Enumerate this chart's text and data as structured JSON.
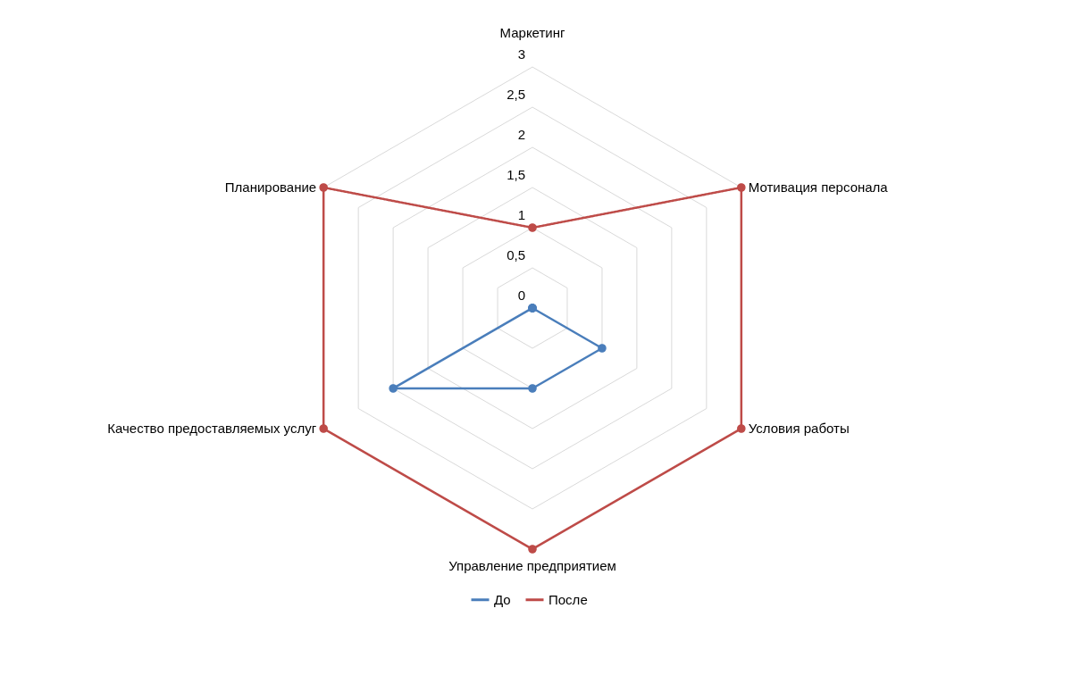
{
  "chart_data": {
    "type": "radar",
    "categories": [
      "Маркетинг",
      "Мотивация персонала",
      "Условия работы",
      "Управление предприятием",
      "Качество предоставляемых услуг",
      "Планирование"
    ],
    "series": [
      {
        "name": "До",
        "color": "#4a7ebb",
        "values": [
          0,
          0,
          1,
          1,
          2,
          0
        ]
      },
      {
        "name": "После",
        "color": "#be4b48",
        "values": [
          1,
          3,
          3,
          3,
          3,
          3
        ]
      }
    ],
    "ylim": [
      0,
      3
    ],
    "yticks": [
      0,
      {
        "value": 0.5,
        "label": "0,5"
      },
      1,
      {
        "value": 1.5,
        "label": "1,5"
      },
      2,
      {
        "value": 2.5,
        "label": "2,5"
      },
      3
    ],
    "grid": true,
    "legend": "bottom",
    "marker": "circle",
    "line_style": "solid"
  }
}
